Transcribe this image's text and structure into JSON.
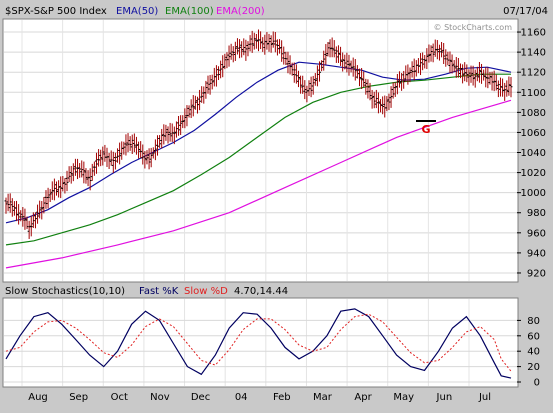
{
  "header": {
    "symbol": "$SPX-S&P 500 Index",
    "ema50_label": "EMA(50)",
    "ema100_label": "EMA(100)",
    "ema200_label": "EMA(200)",
    "date": "07/17/04",
    "watermark": "© StockCharts.com"
  },
  "stoch_header": {
    "name": "Slow Stochastics(10,10)",
    "fast_label": "Fast %K",
    "slow_label": "Slow %D",
    "values": "4.70,14.44"
  },
  "colors": {
    "background": "#c9c9c9",
    "panel": "#ffffff",
    "candle": "#a00000",
    "ema50": "#1010a0",
    "ema100": "#108010",
    "ema200": "#e010e0",
    "fastK": "#000060",
    "slowD": "#e02020",
    "annotation": "#e00000"
  },
  "annotation": {
    "label": "G"
  },
  "chart_data": [
    {
      "type": "line",
      "title": "$SPX-S&P 500 Index",
      "x_labels": [
        "Aug",
        "Sep",
        "Oct",
        "Nov",
        "Dec",
        "04",
        "Feb",
        "Mar",
        "Apr",
        "May",
        "Jun",
        "Jul"
      ],
      "y_ticks": [
        920,
        940,
        960,
        980,
        1000,
        1020,
        1040,
        1060,
        1080,
        1100,
        1120,
        1140,
        1160
      ],
      "ylim": [
        912,
        1172
      ],
      "price_path": [
        [
          0,
          990
        ],
        [
          4,
          988
        ],
        [
          8,
          980
        ],
        [
          13,
          975
        ],
        [
          17,
          963
        ],
        [
          21,
          975
        ],
        [
          26,
          985
        ],
        [
          30,
          995
        ],
        [
          34,
          1003
        ],
        [
          39,
          1005
        ],
        [
          43,
          1010
        ],
        [
          47,
          1020
        ],
        [
          52,
          1025
        ],
        [
          56,
          1020
        ],
        [
          60,
          1012
        ],
        [
          64,
          1028
        ],
        [
          69,
          1038
        ],
        [
          73,
          1035
        ],
        [
          77,
          1030
        ],
        [
          82,
          1040
        ],
        [
          86,
          1048
        ],
        [
          90,
          1050
        ],
        [
          95,
          1045
        ],
        [
          99,
          1035
        ],
        [
          103,
          1033
        ],
        [
          108,
          1045
        ],
        [
          112,
          1056
        ],
        [
          116,
          1060
        ],
        [
          120,
          1058
        ],
        [
          125,
          1068
        ],
        [
          129,
          1075
        ],
        [
          133,
          1085
        ],
        [
          138,
          1090
        ],
        [
          142,
          1100
        ],
        [
          146,
          1108
        ],
        [
          150,
          1115
        ],
        [
          155,
          1125
        ],
        [
          159,
          1135
        ],
        [
          163,
          1140
        ],
        [
          168,
          1145
        ],
        [
          172,
          1142
        ],
        [
          176,
          1150
        ],
        [
          181,
          1152
        ],
        [
          185,
          1148
        ],
        [
          189,
          1150
        ],
        [
          193,
          1150
        ],
        [
          198,
          1140
        ],
        [
          202,
          1130
        ],
        [
          206,
          1122
        ],
        [
          211,
          1110
        ],
        [
          215,
          1100
        ],
        [
          219,
          1105
        ],
        [
          224,
          1118
        ],
        [
          228,
          1133
        ],
        [
          232,
          1146
        ],
        [
          237,
          1140
        ],
        [
          241,
          1132
        ],
        [
          245,
          1128
        ],
        [
          249,
          1125
        ],
        [
          254,
          1115
        ],
        [
          258,
          1108
        ],
        [
          262,
          1095
        ],
        [
          267,
          1090
        ],
        [
          271,
          1085
        ],
        [
          275,
          1092
        ],
        [
          280,
          1108
        ],
        [
          284,
          1112
        ],
        [
          288,
          1118
        ],
        [
          292,
          1122
        ],
        [
          297,
          1128
        ],
        [
          301,
          1133
        ],
        [
          305,
          1140
        ],
        [
          310,
          1143
        ],
        [
          314,
          1138
        ],
        [
          318,
          1130
        ],
        [
          323,
          1125
        ],
        [
          327,
          1120
        ],
        [
          331,
          1118
        ],
        [
          336,
          1115
        ],
        [
          340,
          1120
        ],
        [
          344,
          1115
        ],
        [
          349,
          1112
        ],
        [
          353,
          1106
        ],
        [
          357,
          1102
        ],
        [
          362,
          1106
        ]
      ],
      "series": [
        {
          "name": "EMA(50)",
          "values": [
            [
              0,
              970
            ],
            [
              15,
              975
            ],
            [
              30,
              983
            ],
            [
              45,
              995
            ],
            [
              60,
              1005
            ],
            [
              75,
              1018
            ],
            [
              90,
              1030
            ],
            [
              105,
              1040
            ],
            [
              120,
              1050
            ],
            [
              135,
              1062
            ],
            [
              150,
              1078
            ],
            [
              165,
              1095
            ],
            [
              180,
              1110
            ],
            [
              195,
              1122
            ],
            [
              210,
              1130
            ],
            [
              225,
              1128
            ],
            [
              240,
              1125
            ],
            [
              255,
              1122
            ],
            [
              270,
              1115
            ],
            [
              285,
              1112
            ],
            [
              300,
              1113
            ],
            [
              315,
              1118
            ],
            [
              330,
              1124
            ],
            [
              345,
              1125
            ],
            [
              362,
              1120
            ]
          ]
        },
        {
          "name": "EMA(100)",
          "values": [
            [
              0,
              948
            ],
            [
              20,
              952
            ],
            [
              40,
              960
            ],
            [
              60,
              968
            ],
            [
              80,
              978
            ],
            [
              100,
              990
            ],
            [
              120,
              1002
            ],
            [
              140,
              1018
            ],
            [
              160,
              1035
            ],
            [
              180,
              1055
            ],
            [
              200,
              1075
            ],
            [
              220,
              1090
            ],
            [
              240,
              1100
            ],
            [
              260,
              1106
            ],
            [
              280,
              1110
            ],
            [
              300,
              1112
            ],
            [
              320,
              1115
            ],
            [
              340,
              1118
            ],
            [
              362,
              1118
            ]
          ]
        },
        {
          "name": "EMA(200)",
          "values": [
            [
              0,
              925
            ],
            [
              40,
              935
            ],
            [
              80,
              948
            ],
            [
              120,
              962
            ],
            [
              160,
              980
            ],
            [
              200,
              1005
            ],
            [
              240,
              1030
            ],
            [
              280,
              1055
            ],
            [
              320,
              1075
            ],
            [
              362,
              1092
            ]
          ]
        }
      ]
    },
    {
      "type": "line",
      "title": "Slow Stochastics(10,10)",
      "y_ticks": [
        0,
        20,
        40,
        60,
        80
      ],
      "ylim": [
        0,
        100
      ],
      "series": [
        {
          "name": "Fast %K",
          "values": [
            [
              0,
              30
            ],
            [
              10,
              60
            ],
            [
              20,
              85
            ],
            [
              30,
              90
            ],
            [
              40,
              75
            ],
            [
              50,
              55
            ],
            [
              60,
              35
            ],
            [
              70,
              20
            ],
            [
              80,
              40
            ],
            [
              90,
              75
            ],
            [
              100,
              92
            ],
            [
              110,
              80
            ],
            [
              120,
              50
            ],
            [
              130,
              20
            ],
            [
              140,
              10
            ],
            [
              150,
              35
            ],
            [
              160,
              70
            ],
            [
              170,
              90
            ],
            [
              180,
              88
            ],
            [
              190,
              70
            ],
            [
              200,
              45
            ],
            [
              210,
              30
            ],
            [
              220,
              40
            ],
            [
              230,
              60
            ],
            [
              240,
              92
            ],
            [
              250,
              95
            ],
            [
              260,
              85
            ],
            [
              270,
              60
            ],
            [
              280,
              35
            ],
            [
              290,
              20
            ],
            [
              300,
              15
            ],
            [
              310,
              40
            ],
            [
              320,
              70
            ],
            [
              330,
              85
            ],
            [
              340,
              60
            ],
            [
              350,
              25
            ],
            [
              355,
              8
            ],
            [
              362,
              5
            ]
          ]
        },
        {
          "name": "Slow %D",
          "values": [
            [
              0,
              40
            ],
            [
              10,
              45
            ],
            [
              20,
              65
            ],
            [
              30,
              78
            ],
            [
              40,
              80
            ],
            [
              50,
              70
            ],
            [
              60,
              55
            ],
            [
              70,
              38
            ],
            [
              80,
              32
            ],
            [
              90,
              48
            ],
            [
              100,
              72
            ],
            [
              110,
              82
            ],
            [
              120,
              72
            ],
            [
              130,
              50
            ],
            [
              140,
              28
            ],
            [
              150,
              22
            ],
            [
              160,
              42
            ],
            [
              170,
              68
            ],
            [
              180,
              82
            ],
            [
              190,
              82
            ],
            [
              200,
              68
            ],
            [
              210,
              48
            ],
            [
              220,
              40
            ],
            [
              230,
              45
            ],
            [
              240,
              68
            ],
            [
              250,
              85
            ],
            [
              260,
              88
            ],
            [
              270,
              78
            ],
            [
              280,
              58
            ],
            [
              290,
              38
            ],
            [
              300,
              25
            ],
            [
              310,
              28
            ],
            [
              320,
              45
            ],
            [
              330,
              65
            ],
            [
              340,
              72
            ],
            [
              350,
              55
            ],
            [
              355,
              30
            ],
            [
              362,
              14
            ]
          ]
        }
      ]
    }
  ]
}
